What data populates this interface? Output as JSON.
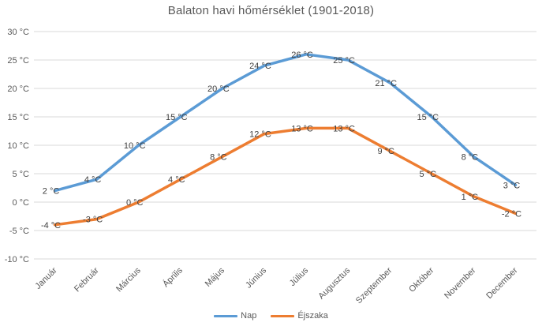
{
  "chart_data": {
    "type": "line",
    "title": "Balaton havi hőmérséklet (1901-2018)",
    "categories": [
      "Január",
      "Február",
      "Március",
      "Április",
      "Május",
      "Június",
      "Július",
      "Augusztus",
      "Szeptember",
      "Október",
      "November",
      "December"
    ],
    "series": [
      {
        "name": "Nap",
        "color": "#5B9BD5",
        "values": [
          2,
          4,
          10,
          15,
          20,
          24,
          26,
          25,
          21,
          15,
          8,
          3
        ]
      },
      {
        "name": "Éjszaka",
        "color": "#ED7D31",
        "values": [
          -4,
          -3,
          0,
          4,
          8,
          12,
          13,
          13,
          9,
          5,
          1,
          -2
        ]
      }
    ],
    "unit": "°C",
    "y_ticks": [
      30,
      25,
      20,
      15,
      10,
      5,
      0,
      -5,
      -10
    ],
    "y_tick_labels": [
      "30 °C",
      "25 °C",
      "20 °C",
      "15 °C",
      "10 °C",
      "5 °C",
      "0 °C",
      "-5 °C",
      "-10 °C"
    ],
    "ylim": [
      -10,
      30
    ],
    "xlabel": "",
    "ylabel": "",
    "grid": "horizontal-only",
    "legend_position": "bottom",
    "data_labels": true
  },
  "colors": {
    "grid": "#D9D9D9",
    "axis_text": "#595959",
    "title_text": "#595959",
    "data_label_text": "#404040",
    "background": "#FFFFFF",
    "series_day": "#5B9BD5",
    "series_night": "#ED7D31"
  }
}
